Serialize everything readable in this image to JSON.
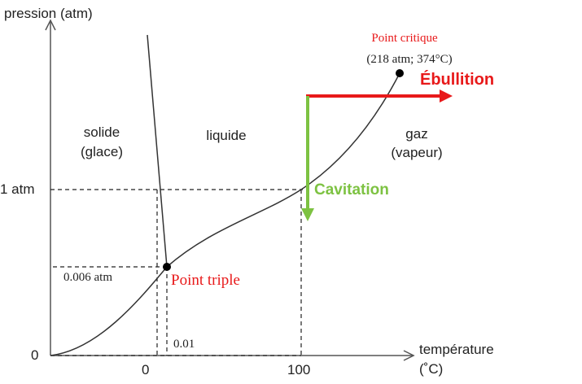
{
  "axes": {
    "y_label": "pression (atm)",
    "x_label": "température",
    "x_unit": "(˚C)",
    "y_ticks": [
      "1 atm",
      "0.006 atm",
      "0"
    ],
    "x_ticks": [
      "0",
      "100",
      "0.01"
    ]
  },
  "regions": {
    "solid": [
      "solide",
      "(glace)"
    ],
    "liquid": "liquide",
    "gas": [
      "gaz",
      "(vapeur)"
    ]
  },
  "points": {
    "critical": {
      "label": "Point critique",
      "detail": "(218 atm; 374°C)"
    },
    "triple": {
      "label": "Point triple"
    }
  },
  "arrows": {
    "boiling": "Ébullition",
    "cavitation": "Cavitation"
  }
}
